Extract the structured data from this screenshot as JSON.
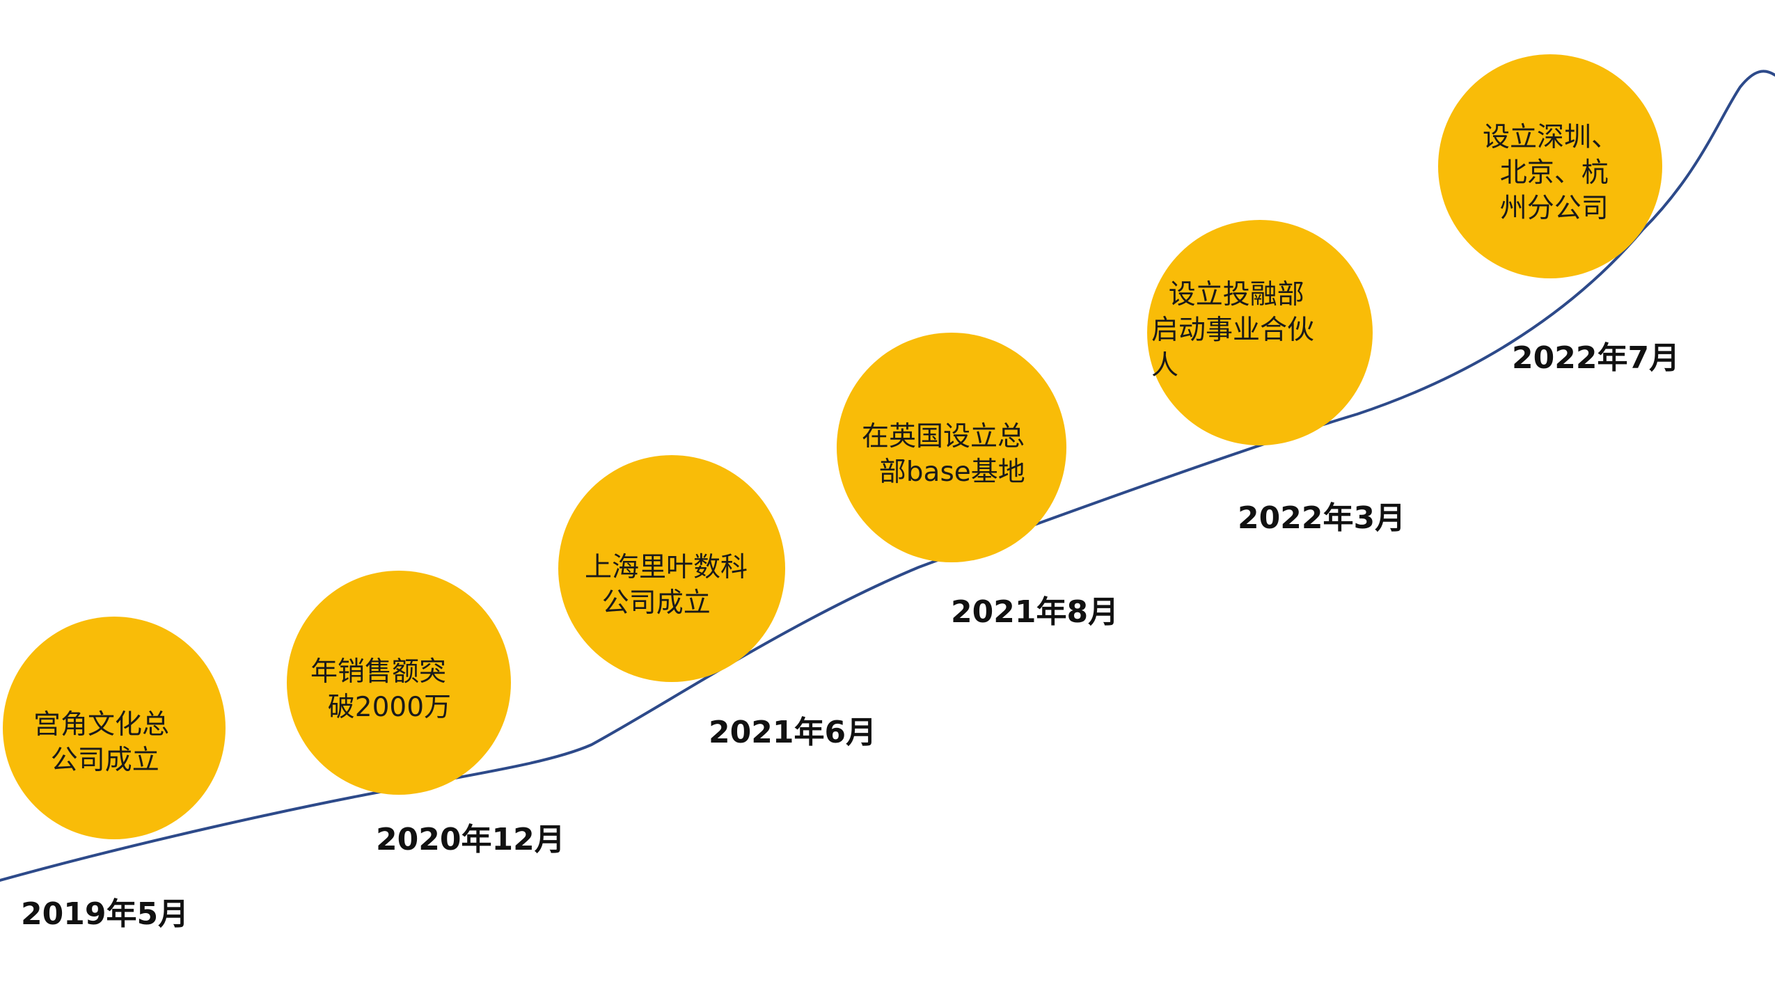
{
  "colors": {
    "circle_fill": "#F9BC08",
    "curve_stroke": "#2D4A8A"
  },
  "milestones": [
    {
      "date": "2019年5月",
      "text": "宫角文化总\n  公司成立"
    },
    {
      "date": "2020年12月",
      "text": "年销售额突\n  破2000万"
    },
    {
      "date": "2021年6月",
      "text": "上海里叶数科\n  公司成立"
    },
    {
      "date": "2021年8月",
      "text": "在英国设立总\n  部base基地"
    },
    {
      "date": "2022年3月",
      "text": "  设立投融部\n启动事业合伙\n人"
    },
    {
      "date": "2022年7月",
      "text": "设立深圳、\n  北京、杭\n  州分公司"
    }
  ]
}
